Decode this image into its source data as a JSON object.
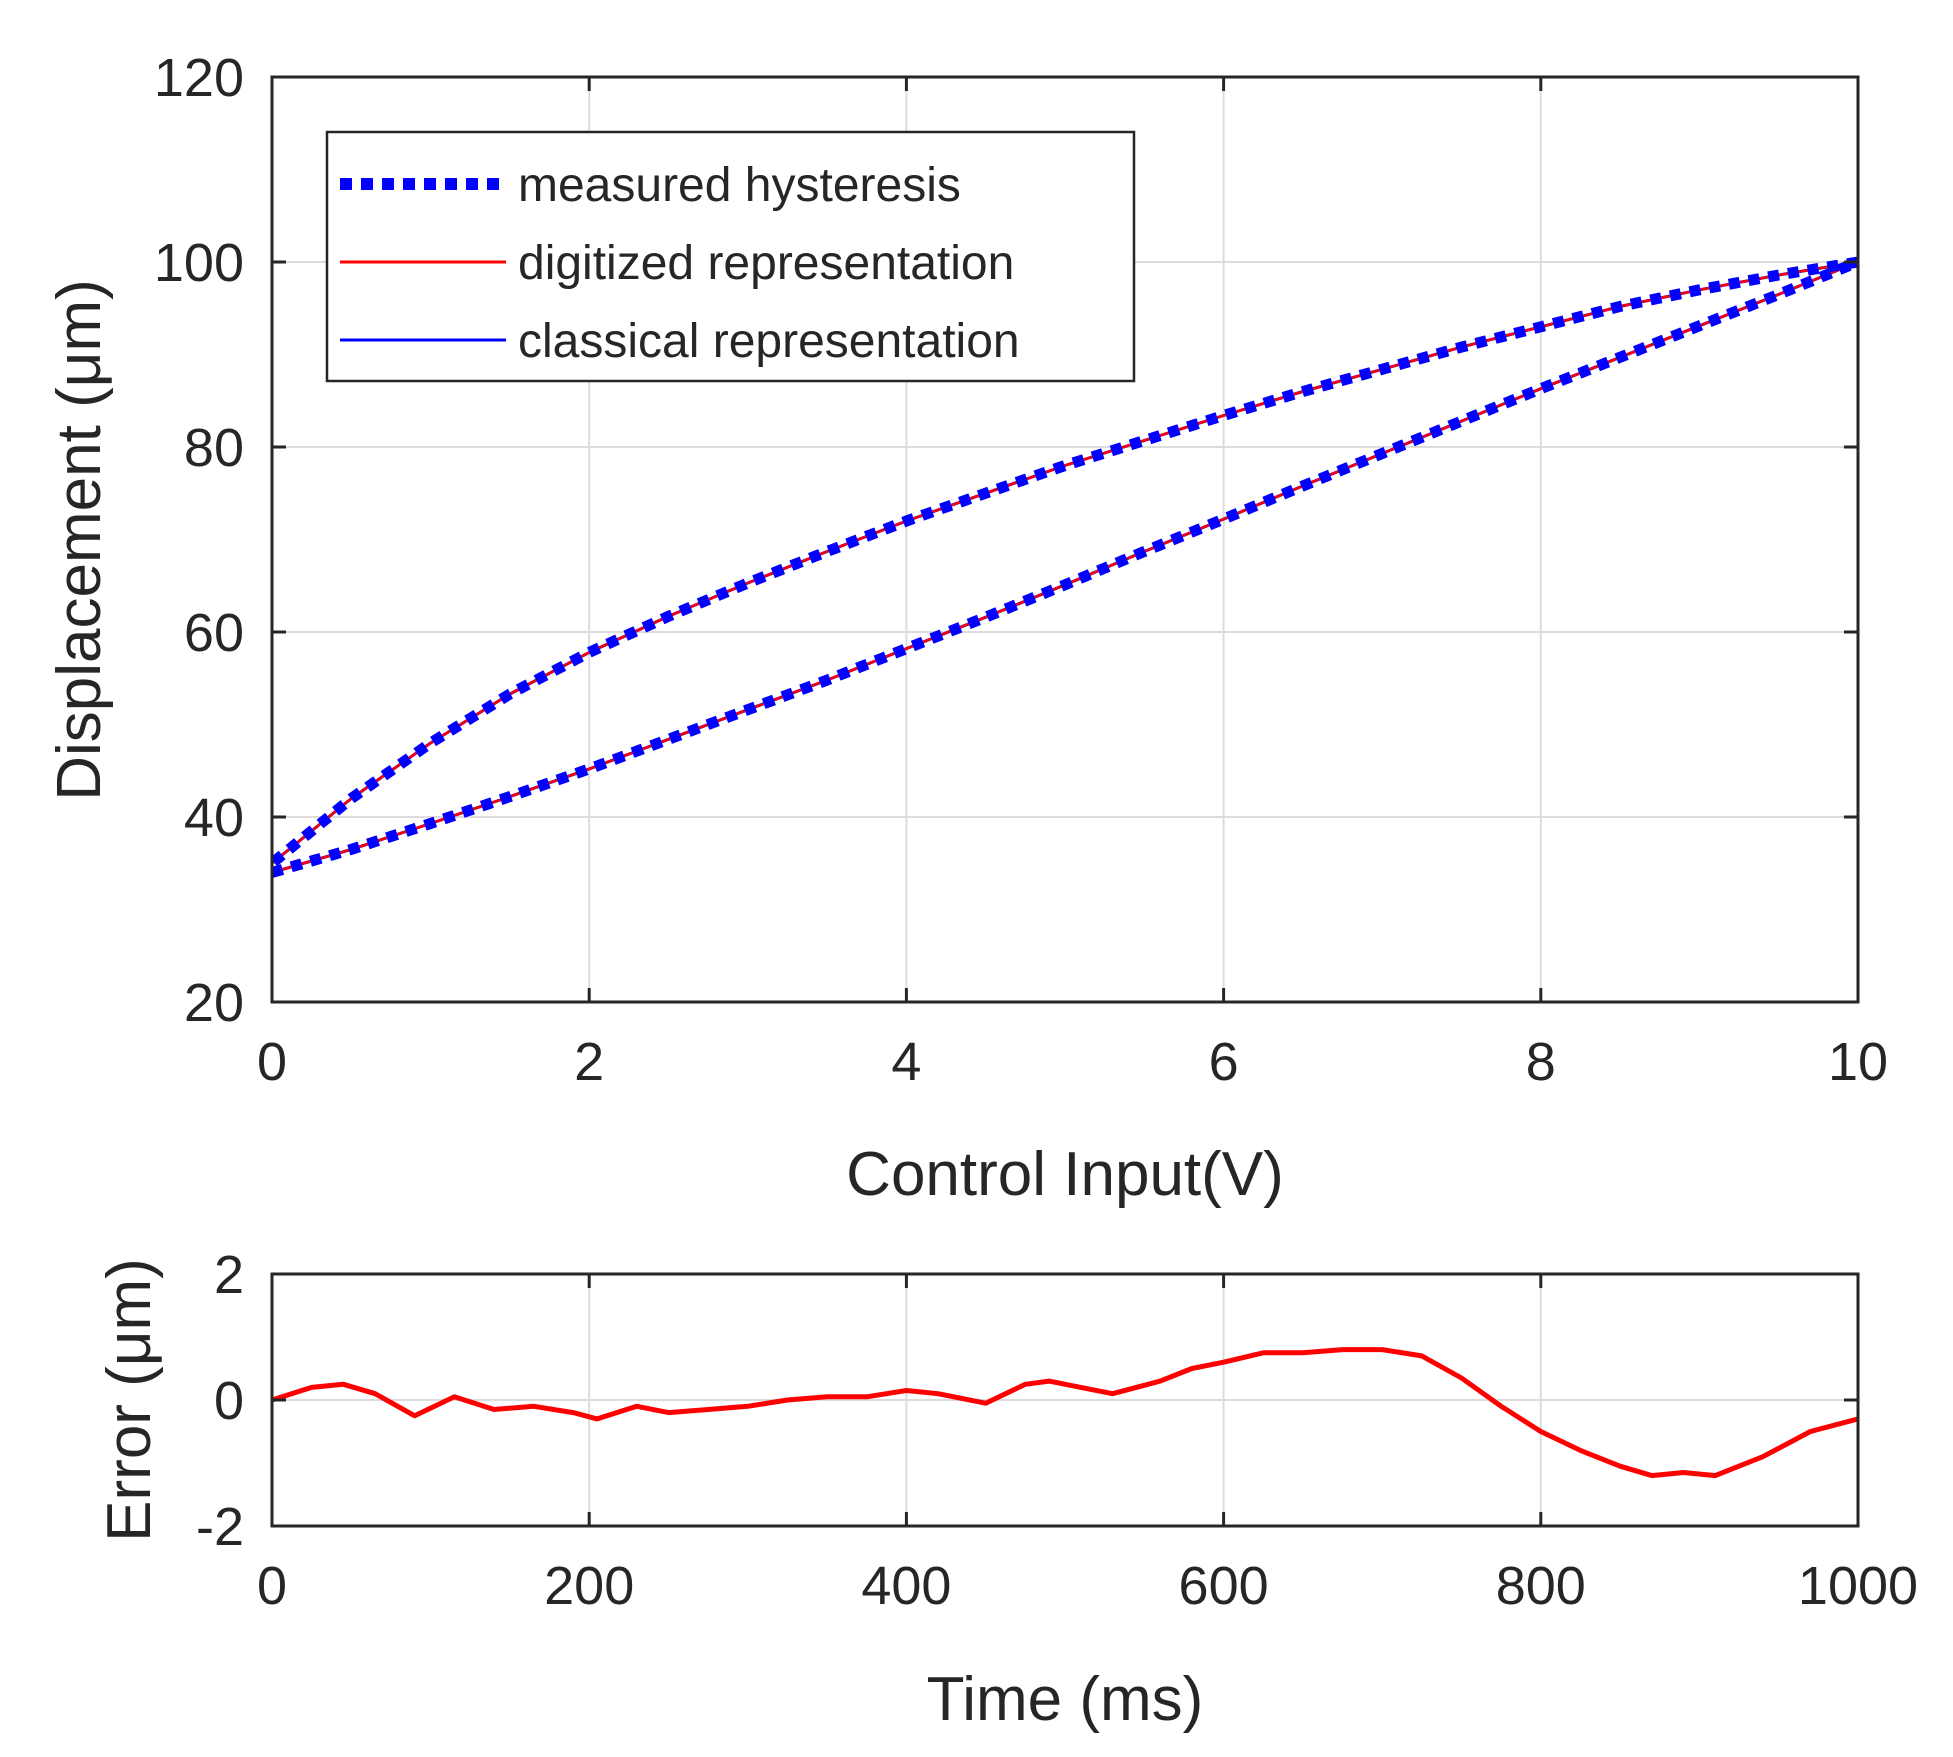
{
  "chart_data": [
    {
      "type": "line",
      "title": "",
      "xlabel": "Control Input(V)",
      "ylabel": "Displacement (μm)",
      "xlim": [
        0,
        10
      ],
      "ylim": [
        20,
        120
      ],
      "xticks": [
        "0",
        "2",
        "4",
        "6",
        "8",
        "10"
      ],
      "yticks": [
        "20",
        "40",
        "60",
        "80",
        "100",
        "120"
      ],
      "grid": true,
      "legend_position": "top-left",
      "series": [
        {
          "name": "measured hysteresis",
          "style": "dotted",
          "color": "#0000ff",
          "branches": [
            {
              "x": [
                0,
                0.5,
                1,
                1.5,
                2,
                2.5,
                3,
                3.5,
                4,
                4.5,
                5,
                5.5,
                6,
                6.5,
                7,
                7.5,
                8,
                8.5,
                9,
                9.5,
                10
              ],
              "y": [
                34,
                36.5,
                39.3,
                42.2,
                45.2,
                48.4,
                51.6,
                54.8,
                58.2,
                61.6,
                65.1,
                68.7,
                72.2,
                75.8,
                79.3,
                82.8,
                86.3,
                89.7,
                93.1,
                96.5,
                100
              ]
            },
            {
              "x": [
                10,
                9.5,
                9,
                8.5,
                8,
                7.5,
                7,
                6.5,
                6,
                5.5,
                5,
                4.5,
                4,
                3.5,
                3,
                2.5,
                2,
                1.5,
                1,
                0.5,
                0
              ],
              "y": [
                100,
                98.6,
                97,
                95.2,
                93,
                90.8,
                88.4,
                86,
                83.4,
                80.7,
                78,
                75,
                72,
                68.7,
                65.3,
                61.7,
                57.8,
                53.3,
                48,
                42,
                35
              ]
            }
          ]
        },
        {
          "name": "digitized representation",
          "style": "solid",
          "color": "#ff0000",
          "branches": [
            {
              "x": [
                0,
                0.5,
                1,
                1.5,
                2,
                2.5,
                3,
                3.5,
                4,
                4.5,
                5,
                5.5,
                6,
                6.5,
                7,
                7.5,
                8,
                8.5,
                9,
                9.5,
                10
              ],
              "y": [
                34,
                36.5,
                39.3,
                42.2,
                45.2,
                48.4,
                51.6,
                54.8,
                58.2,
                61.6,
                65.1,
                68.7,
                72.2,
                75.8,
                79.3,
                82.8,
                86.3,
                89.7,
                93.1,
                96.5,
                100
              ]
            },
            {
              "x": [
                10,
                9.5,
                9,
                8.5,
                8,
                7.5,
                7,
                6.5,
                6,
                5.5,
                5,
                4.5,
                4,
                3.5,
                3,
                2.5,
                2,
                1.5,
                1,
                0.5,
                0
              ],
              "y": [
                100,
                98.6,
                97,
                95.2,
                93,
                90.8,
                88.4,
                86,
                83.4,
                80.7,
                78,
                75,
                72,
                68.7,
                65.3,
                61.7,
                57.8,
                53.3,
                48,
                42,
                35
              ]
            }
          ]
        },
        {
          "name": "classical representation",
          "style": "solid",
          "color": "#0000ff",
          "branches": [
            {
              "x": [
                0,
                0.5,
                1,
                1.5,
                2,
                2.5,
                3,
                3.5,
                4,
                4.5,
                5,
                5.5,
                6,
                6.5,
                7,
                7.5,
                8,
                8.5,
                9,
                9.5,
                10
              ],
              "y": [
                34,
                36.5,
                39.3,
                42.2,
                45.2,
                48.4,
                51.6,
                54.8,
                58.2,
                61.6,
                65.1,
                68.7,
                72.2,
                75.8,
                79.3,
                82.8,
                86.3,
                89.7,
                93.1,
                96.5,
                100
              ]
            },
            {
              "x": [
                10,
                9.5,
                9,
                8.5,
                8,
                7.5,
                7,
                6.5,
                6,
                5.5,
                5,
                4.5,
                4,
                3.5,
                3,
                2.5,
                2,
                1.5,
                1,
                0.5,
                0
              ],
              "y": [
                100,
                98.6,
                97,
                95.2,
                93,
                90.8,
                88.4,
                86,
                83.4,
                80.7,
                78,
                75,
                72,
                68.7,
                65.3,
                61.7,
                57.8,
                53.3,
                48,
                42,
                35
              ]
            }
          ]
        }
      ]
    },
    {
      "type": "line",
      "title": "",
      "xlabel": "Time (ms)",
      "ylabel": "Error (μm)",
      "xlim": [
        0,
        1000
      ],
      "ylim": [
        -2,
        2
      ],
      "xticks": [
        "0",
        "200",
        "400",
        "600",
        "800",
        "1000"
      ],
      "yticks": [
        "-2",
        "0",
        "2"
      ],
      "grid": true,
      "series": [
        {
          "color": "#ff0000",
          "x": [
            0,
            25,
            45,
            65,
            90,
            115,
            140,
            165,
            190,
            205,
            230,
            250,
            275,
            300,
            325,
            350,
            375,
            400,
            420,
            450,
            475,
            490,
            510,
            530,
            560,
            580,
            600,
            625,
            650,
            675,
            700,
            725,
            750,
            775,
            800,
            825,
            850,
            870,
            890,
            910,
            940,
            970,
            1000
          ],
          "y": [
            0,
            0.2,
            0.25,
            0.1,
            -0.25,
            0.05,
            -0.15,
            -0.1,
            -0.2,
            -0.3,
            -0.1,
            -0.2,
            -0.15,
            -0.1,
            0,
            0.05,
            0.05,
            0.15,
            0.1,
            -0.05,
            0.25,
            0.3,
            0.2,
            0.1,
            0.3,
            0.5,
            0.6,
            0.75,
            0.75,
            0.8,
            0.8,
            0.7,
            0.35,
            -0.1,
            -0.5,
            -0.8,
            -1.05,
            -1.2,
            -1.15,
            -1.2,
            -0.9,
            -0.5,
            -0.3
          ]
        }
      ]
    }
  ]
}
